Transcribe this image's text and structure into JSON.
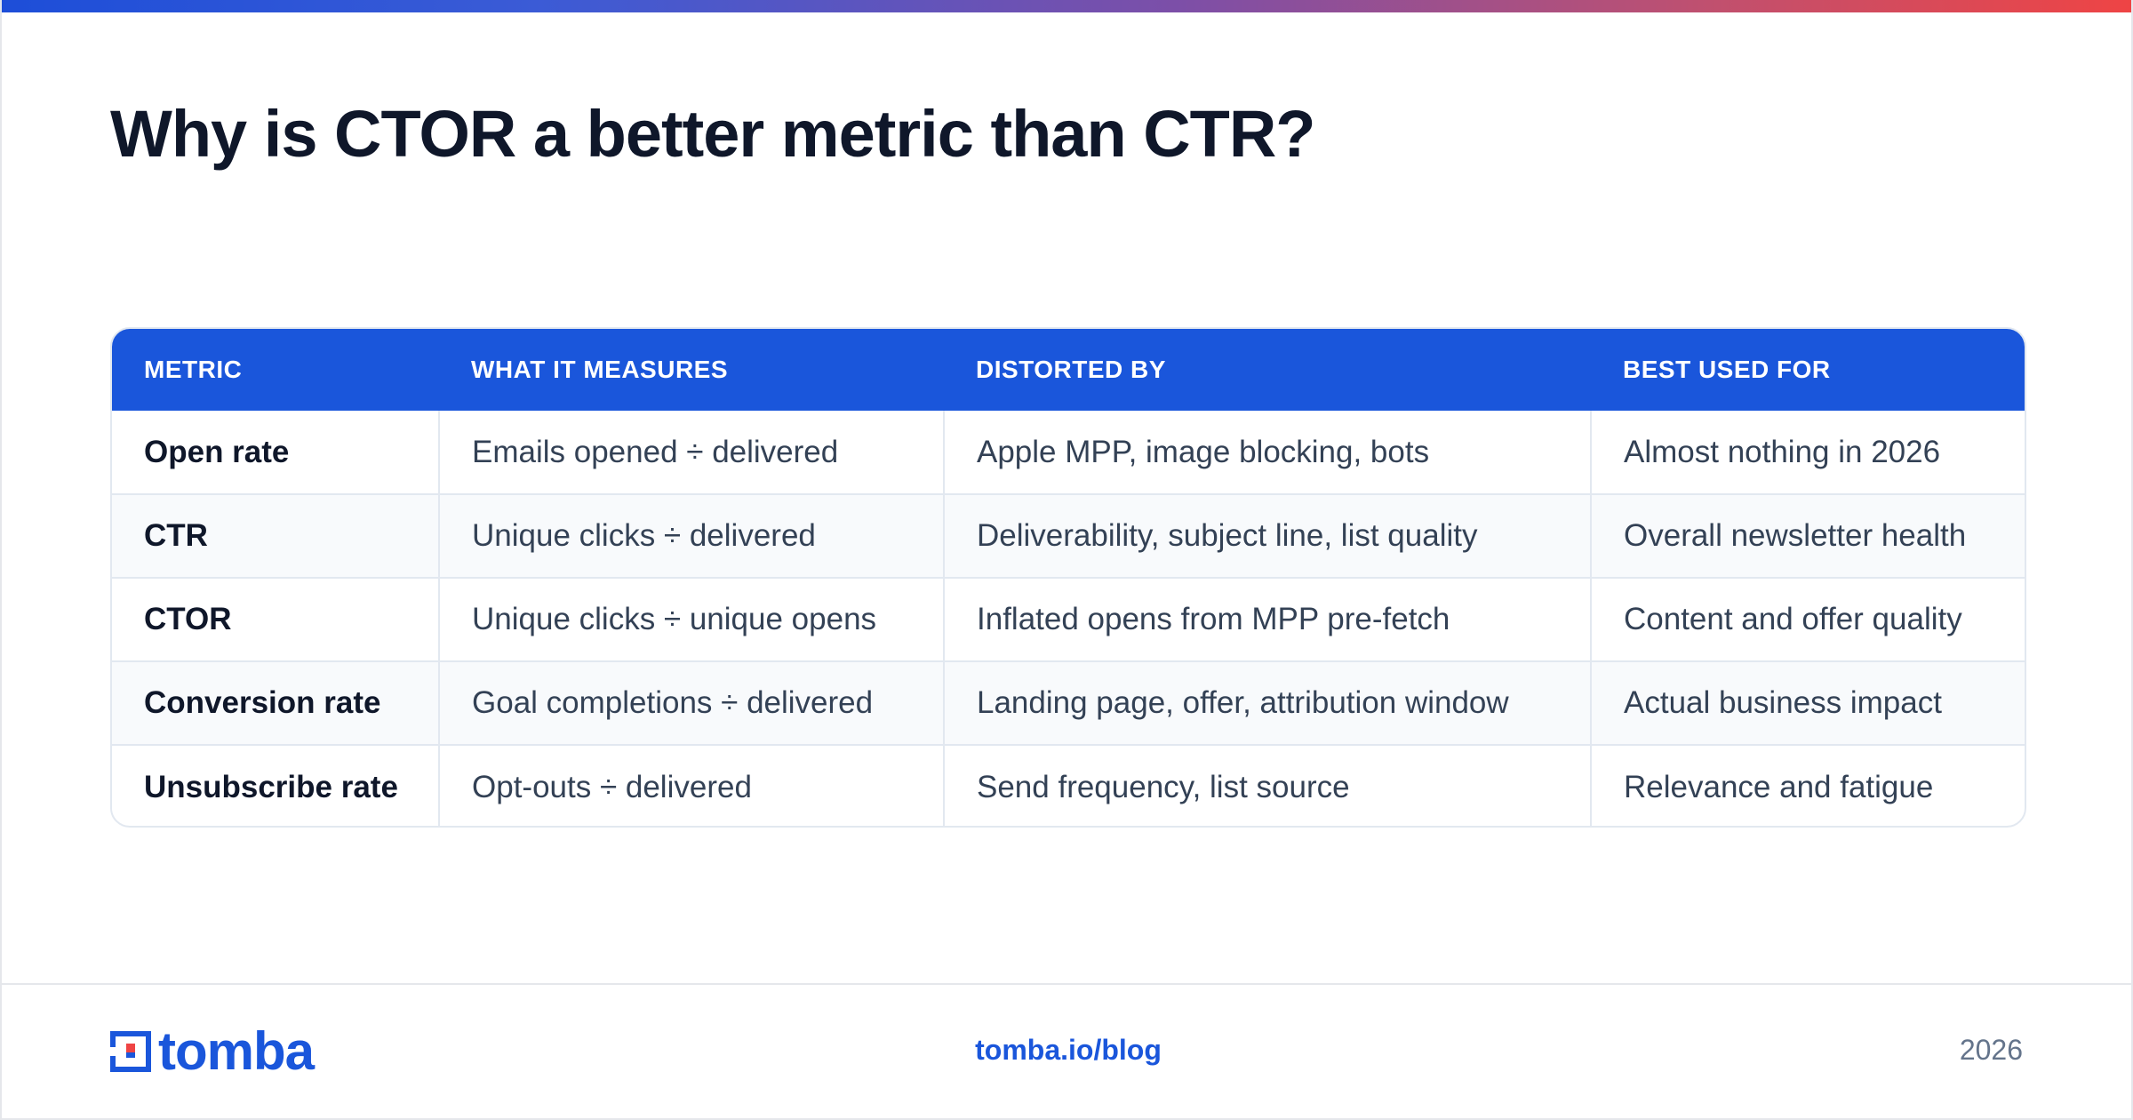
{
  "header": {
    "title": "Why is CTOR a better metric than CTR?",
    "accent_colors": [
      "#1d4ed8",
      "#ef4444"
    ]
  },
  "table": {
    "columns": [
      "METRIC",
      "WHAT IT MEASURES",
      "DISTORTED BY",
      "BEST USED FOR"
    ],
    "rows": [
      [
        "Open rate",
        "Emails opened ÷ delivered",
        "Apple MPP, image blocking, bots",
        "Almost nothing in 2026"
      ],
      [
        "CTR",
        "Unique clicks ÷ delivered",
        "Deliverability, subject line, list quality",
        "Overall newsletter health"
      ],
      [
        "CTOR",
        "Unique clicks ÷ unique opens",
        "Inflated opens from MPP pre-fetch",
        "Content and offer quality"
      ],
      [
        "Conversion rate",
        "Goal completions ÷ delivered",
        "Landing page, offer, attribution window",
        "Actual business impact"
      ],
      [
        "Unsubscribe rate",
        "Opt-outs ÷ delivered",
        "Send frequency, list source",
        "Relevance and fatigue"
      ]
    ],
    "header_color": "#1a56db"
  },
  "footer": {
    "logo_text": "tomba",
    "logo_icon": "tomba-logo-icon",
    "link": "tomba.io/blog",
    "year": "2026"
  }
}
